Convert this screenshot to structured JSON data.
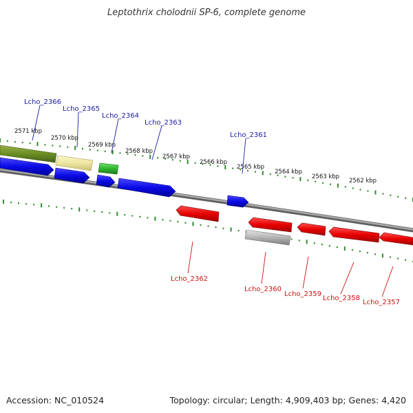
{
  "title": "Leptothrix cholodnii SP-6, complete genome",
  "footer": {
    "accession": "Accession: NC_010524",
    "summary": "Topology: circular; Length: 4,909,403 bp; Genes: 4,420"
  },
  "colors": {
    "backbone": "#8a8a8a",
    "tick": "#2e8b2e",
    "forward_cds": "#1010e0",
    "reverse_cds": "#e00000",
    "olive": "#6b8e23",
    "pale_yellow": "#eee8aa",
    "green": "#33bb33",
    "gray": "#aaaaaa",
    "label_blue": "#1a1aa6",
    "label_red": "#cc1111"
  },
  "kbp_labels": [
    "2571 kbp",
    "2570 kbp",
    "2569 kbp",
    "2568 kbp",
    "2567 kbp",
    "2566 kbp",
    "2565 kbp",
    "2564 kbp",
    "2563 kbp",
    "2562 kbp"
  ],
  "top_gene_labels": [
    "Lcho_2366",
    "Lcho_2365",
    "Lcho_2364",
    "Lcho_2363",
    "Lcho_2361"
  ],
  "bottom_gene_labels": [
    "Lcho_2362",
    "Lcho_2360",
    "Lcho_2359",
    "Lcho_2358",
    "Lcho_2357"
  ]
}
